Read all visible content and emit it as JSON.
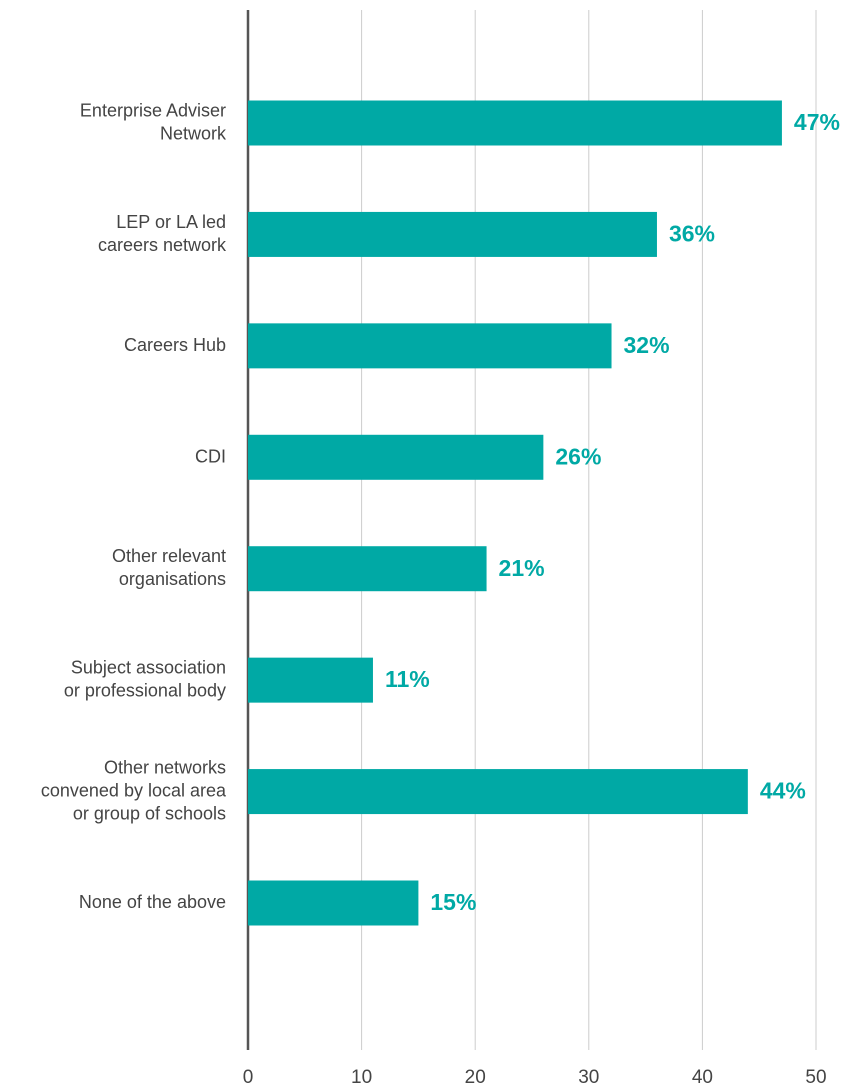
{
  "chart_data": {
    "type": "bar",
    "orientation": "horizontal",
    "categories": [
      "Enterprise Adviser\nNetwork",
      "LEP or LA led\ncareers network",
      "Careers Hub",
      "CDI",
      "Other relevant\norganisations",
      "Subject association\nor professional body",
      "Other networks\nconvened by local area\nor group of schools",
      "None of the above"
    ],
    "values": [
      47,
      36,
      32,
      26,
      21,
      11,
      44,
      15
    ],
    "value_labels": [
      "47%",
      "36%",
      "32%",
      "26%",
      "21%",
      "11%",
      "44%",
      "15%"
    ],
    "color": "#00a9a5",
    "xlim": [
      0,
      50
    ],
    "xticks": [
      0,
      10,
      20,
      30,
      40,
      50
    ],
    "grid": true
  }
}
